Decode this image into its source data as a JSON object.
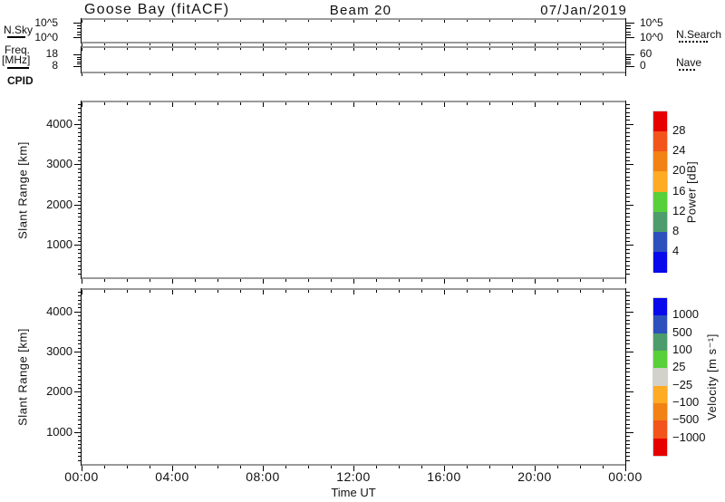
{
  "header": {
    "title": "Goose Bay (fitACF)",
    "beam_label": "Beam 20",
    "date": "07/Jan/2019"
  },
  "misc": {
    "cpid_label": "CPID"
  },
  "colors": {
    "background": "#ffffff",
    "frame_gray": "#9a9a9a",
    "axis_black": "#000000",
    "text": "#111111"
  },
  "x_axis": {
    "label": "Time UT",
    "tick_labels": [
      "00:00",
      "04:00",
      "08:00",
      "12:00",
      "16:00",
      "20:00",
      "00:00"
    ],
    "span_hours": 24,
    "major_every_hours": 4,
    "minor_every_hours": 1
  },
  "chart_data": [
    {
      "id": "noise",
      "type": "line",
      "series": [],
      "left_legend": {
        "label": "N.Sky",
        "linestyle": "solid"
      },
      "right_legend": {
        "label": "N.Search",
        "linestyle": "dotted"
      },
      "y_axis": {
        "scale": "log",
        "left_tick_labels": [
          "10^5",
          "10^0"
        ],
        "right_tick_labels": [
          "10^5",
          "10^0"
        ]
      }
    },
    {
      "id": "frequency",
      "type": "line",
      "series": [],
      "left_legend": {
        "label": "Freq.",
        "label2": "[MHz]",
        "linestyle": "solid"
      },
      "right_legend": {
        "label": "Nave",
        "linestyle": "dotted"
      },
      "y_axis": {
        "left_tick_labels": [
          "18",
          "8"
        ],
        "right_tick_labels": [
          "60",
          "0"
        ]
      }
    },
    {
      "id": "power",
      "type": "heatmap",
      "series": [],
      "ylabel": "Slant Range [km]",
      "ylim": [
        180,
        4560
      ],
      "yticks": [
        1000,
        2000,
        3000,
        4000
      ],
      "ytick_minor_step": 100,
      "colorbar": {
        "title": "Power [dB]",
        "tick_labels_top_to_bottom": [
          "28",
          "24",
          "20",
          "16",
          "12",
          "8",
          "4"
        ],
        "colors_top_to_bottom": [
          "#e60000",
          "#f2541b",
          "#f28214",
          "#ffab24",
          "#57d039",
          "#4d9c6c",
          "#2d50bd",
          "#0909eb"
        ]
      }
    },
    {
      "id": "velocity",
      "type": "heatmap",
      "series": [],
      "ylabel": "Slant Range [km]",
      "ylim": [
        180,
        4560
      ],
      "yticks": [
        1000,
        2000,
        3000,
        4000
      ],
      "ytick_minor_step": 100,
      "colorbar": {
        "title": "Velocity [m s⁻¹]",
        "tick_labels_top_to_bottom": [
          "1000",
          "500",
          "100",
          "25",
          "−25",
          "−100",
          "−500",
          "−1000"
        ],
        "colors_top_to_bottom": [
          "#0909eb",
          "#2d50bd",
          "#4d9c6c",
          "#57d039",
          "#d2d2ca",
          "#ffab24",
          "#f28214",
          "#f2541b",
          "#e60000"
        ]
      }
    }
  ]
}
